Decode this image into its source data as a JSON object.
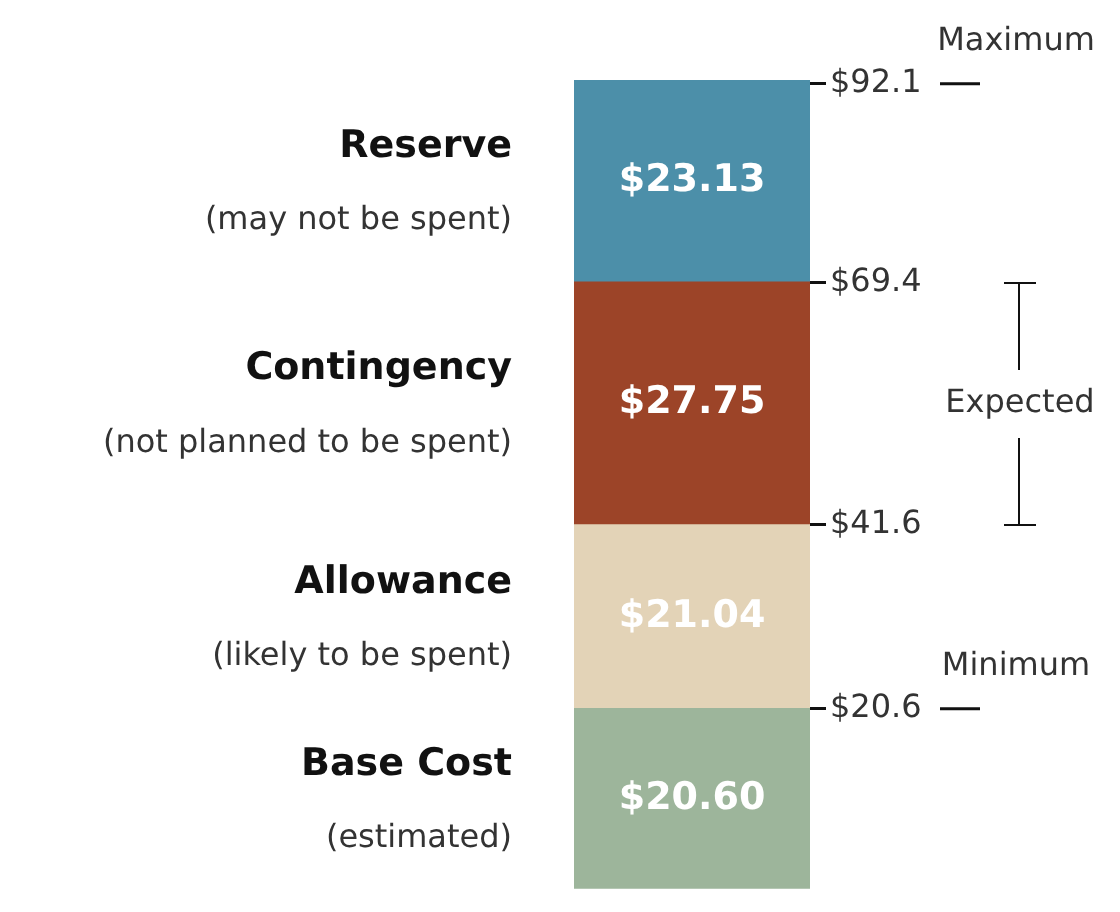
{
  "chart_data": {
    "type": "bar",
    "stacked": true,
    "categories": [
      null
    ],
    "series": [
      {
        "name": "Base Cost",
        "color": "#9db59b",
        "values": [
          20.6
        ],
        "value_labels": [
          "$20.60"
        ]
      },
      {
        "name": "Allowance",
        "color": "#e3d3b7",
        "values": [
          21.04
        ],
        "value_labels": [
          "$21.04"
        ]
      },
      {
        "name": "Contingency",
        "color": "#9c4428",
        "values": [
          27.75
        ],
        "value_labels": [
          "$27.75"
        ]
      },
      {
        "name": "Reserve",
        "color": "#4c8fa9",
        "values": [
          23.13
        ],
        "value_labels": [
          "$23.13"
        ]
      }
    ],
    "ylim": [
      0,
      92.52
    ],
    "yticks": [
      {
        "value": 20.6,
        "label": "$20.6"
      },
      {
        "value": 41.64,
        "label": "$41.6"
      },
      {
        "value": 69.39,
        "label": "$69.4"
      },
      {
        "value": 92.1,
        "label": "$92.1"
      }
    ],
    "ref_lines": [
      {
        "axis": "y",
        "value": 92.1,
        "label": "Maximum"
      },
      {
        "axis": "y",
        "value": 20.6,
        "label": "Minimum"
      }
    ],
    "annotations": [
      "(estimated)",
      "(likely to be spent)",
      "(not planned to be spent)",
      "(may not be spent)",
      "Expected"
    ],
    "legend": false
  }
}
